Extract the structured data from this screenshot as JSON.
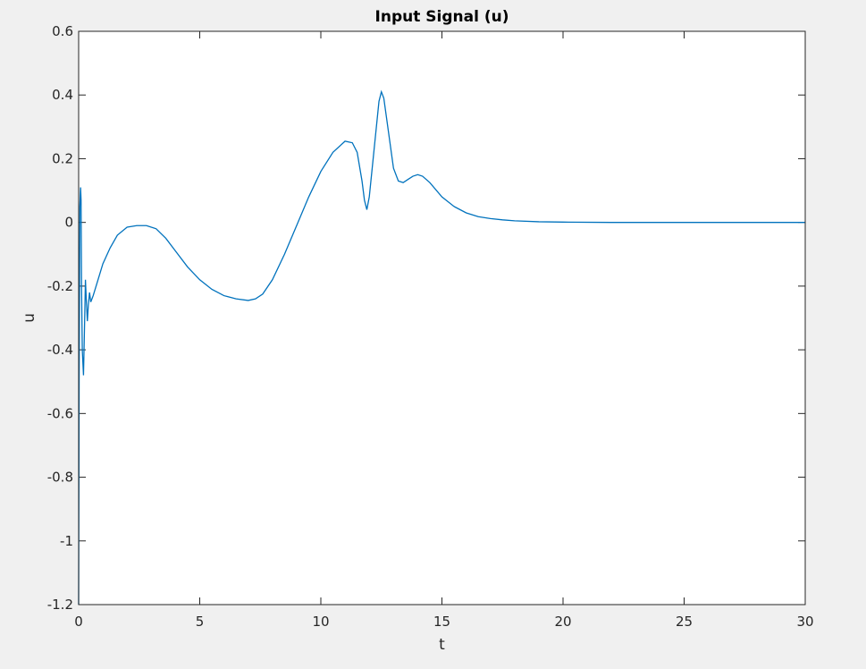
{
  "chart_data": {
    "type": "line",
    "title": "Input Signal (u)",
    "xlabel": "t",
    "ylabel": "u",
    "xlim": [
      0,
      30
    ],
    "ylim": [
      -1.2,
      0.6
    ],
    "xticks": [
      0,
      5,
      10,
      15,
      20,
      25,
      30
    ],
    "yticks": [
      0.6,
      0.4,
      0.2,
      0,
      -0.2,
      -0.4,
      -0.6,
      -0.8,
      -1,
      -1.2
    ],
    "xtick_labels": [
      "0",
      "5",
      "10",
      "15",
      "20",
      "25",
      "30"
    ],
    "ytick_labels": [
      "0.6",
      "0.4",
      "0.2",
      "0",
      "-0.2",
      "-0.4",
      "-0.6",
      "-0.8",
      "-1",
      "-1.2"
    ],
    "grid": false,
    "line_color": "#0072bd",
    "series": [
      {
        "x": [
          0,
          0.02,
          0.05,
          0.08,
          0.1,
          0.12,
          0.15,
          0.2,
          0.25,
          0.28,
          0.32,
          0.36,
          0.4,
          0.45,
          0.5,
          0.55,
          0.6,
          0.7,
          0.8,
          1.0,
          1.3,
          1.6,
          2.0,
          2.4,
          2.8,
          3.2,
          3.6,
          4.0,
          4.5,
          5.0,
          5.5,
          6.0,
          6.5,
          7.0,
          7.3,
          7.6,
          8.0,
          8.5,
          9.0,
          9.5,
          10.0,
          10.5,
          11.0,
          11.3,
          11.5,
          11.7,
          11.8,
          11.9,
          12.0,
          12.2,
          12.4,
          12.5,
          12.6,
          12.8,
          13.0,
          13.2,
          13.4,
          13.6,
          13.8,
          14.0,
          14.2,
          14.5,
          15.0,
          15.5,
          16.0,
          16.5,
          17.0,
          17.5,
          18.0,
          19.0,
          20.0,
          22.0,
          25.0,
          28.0,
          30.0
        ],
        "y": [
          -1.2,
          -0.5,
          0.05,
          0.11,
          0.07,
          -0.2,
          -0.4,
          -0.48,
          -0.3,
          -0.18,
          -0.25,
          -0.31,
          -0.26,
          -0.22,
          -0.25,
          -0.24,
          -0.23,
          -0.205,
          -0.18,
          -0.13,
          -0.08,
          -0.04,
          -0.015,
          -0.01,
          -0.01,
          -0.02,
          -0.05,
          -0.09,
          -0.14,
          -0.18,
          -0.21,
          -0.23,
          -0.24,
          -0.245,
          -0.24,
          -0.225,
          -0.18,
          -0.1,
          -0.01,
          0.08,
          0.16,
          0.22,
          0.255,
          0.25,
          0.22,
          0.13,
          0.07,
          0.04,
          0.08,
          0.23,
          0.38,
          0.41,
          0.39,
          0.28,
          0.17,
          0.13,
          0.125,
          0.135,
          0.145,
          0.15,
          0.145,
          0.125,
          0.08,
          0.05,
          0.03,
          0.018,
          0.012,
          0.008,
          0.005,
          0.002,
          0.001,
          0.0,
          0.0,
          0.0,
          0.0
        ]
      }
    ]
  }
}
